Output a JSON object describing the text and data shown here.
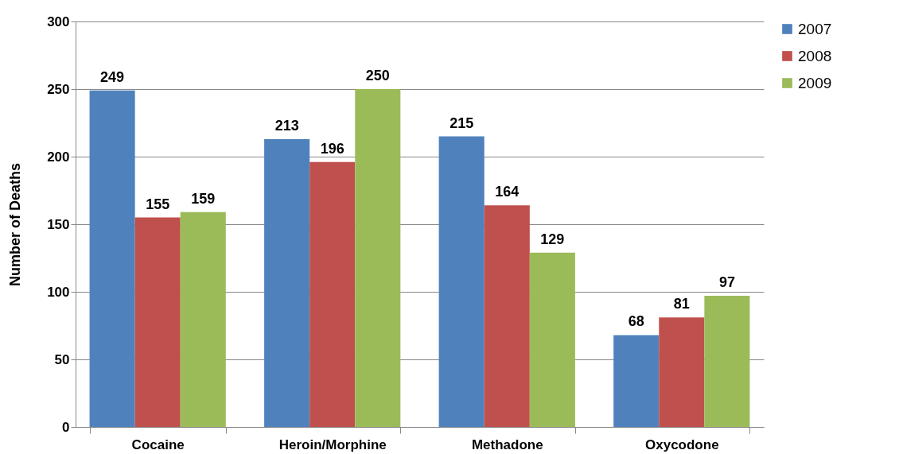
{
  "chart_data": {
    "type": "bar",
    "ylabel": "Number of Deaths",
    "categories": [
      "Cocaine",
      "Heroin/Morphine",
      "Methadone",
      "Oxycodone"
    ],
    "series": [
      {
        "name": "2007",
        "color": "#4f81bd",
        "values": [
          249,
          213,
          215,
          68
        ]
      },
      {
        "name": "2008",
        "color": "#c0504d",
        "values": [
          155,
          196,
          164,
          81
        ]
      },
      {
        "name": "2009",
        "color": "#9bbb59",
        "values": [
          159,
          250,
          129,
          97
        ]
      }
    ],
    "ylim": [
      0,
      300
    ],
    "yticks": [
      0,
      50,
      100,
      150,
      200,
      250,
      300
    ],
    "grid": "y",
    "legend": "right",
    "data_labels": true
  }
}
